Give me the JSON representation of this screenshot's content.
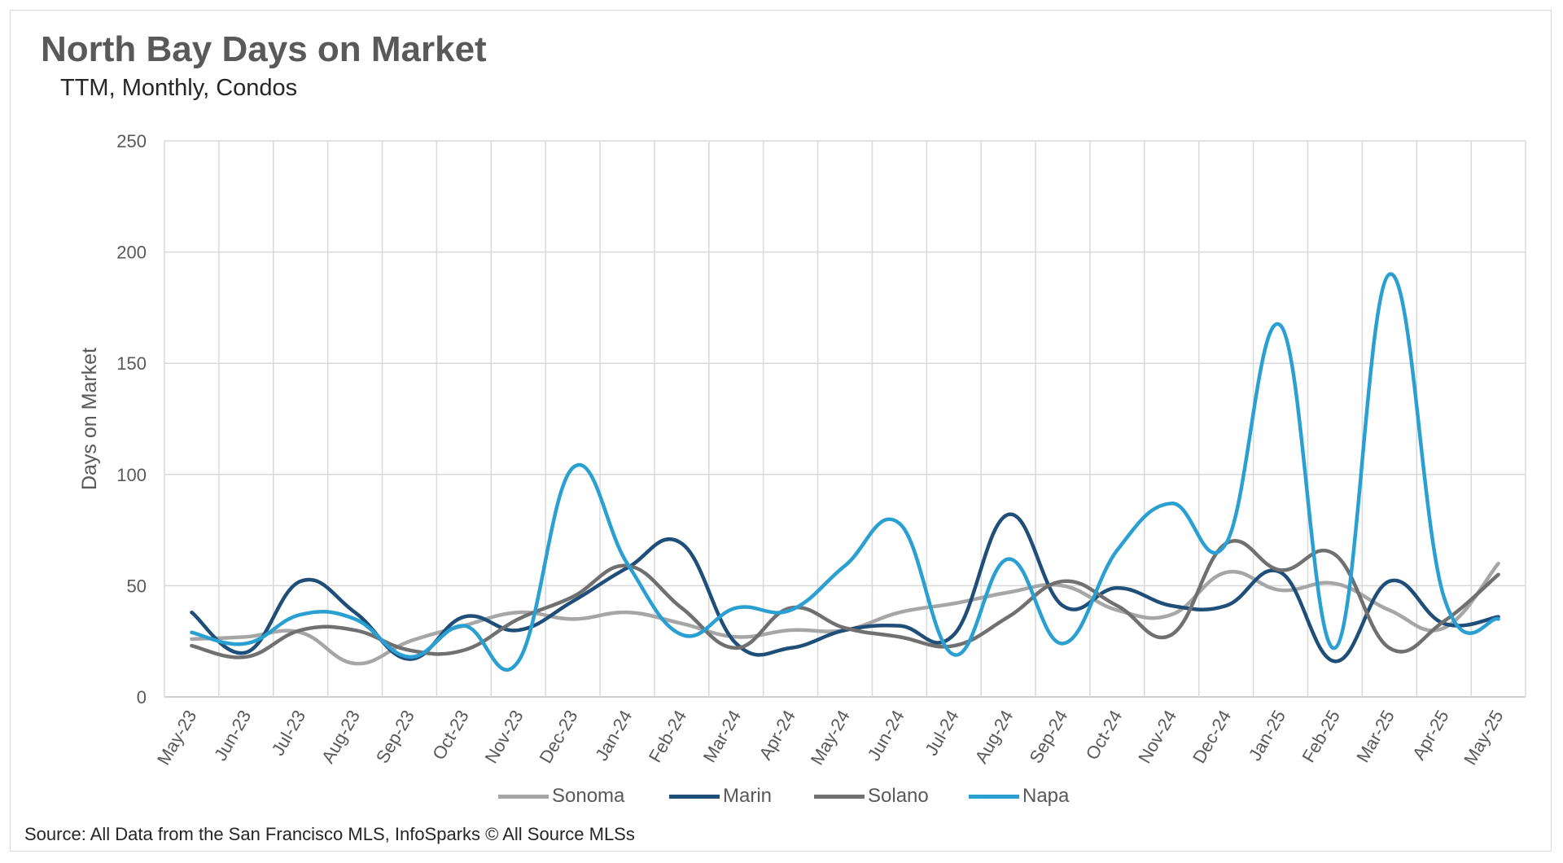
{
  "title": "North Bay Days on Market",
  "subtitle": "TTM, Monthly, Condos",
  "source": "Source: All Data from the San Francisco MLS, InfoSparks © All Source MLSs",
  "chart_data": {
    "type": "line",
    "smooth": true,
    "ylabel": "Days on Market",
    "xlabel": "",
    "ylim": [
      0,
      250
    ],
    "yticks": [
      0,
      50,
      100,
      150,
      200,
      250
    ],
    "grid": true,
    "legend_position": "bottom",
    "categories": [
      "May-23",
      "Jun-23",
      "Jul-23",
      "Aug-23",
      "Sep-23",
      "Oct-23",
      "Nov-23",
      "Dec-23",
      "Jan-24",
      "Feb-24",
      "Mar-24",
      "Apr-24",
      "May-24",
      "Jun-24",
      "Jul-24",
      "Aug-24",
      "Sep-24",
      "Oct-24",
      "Nov-24",
      "Dec-24",
      "Jan-25",
      "Feb-25",
      "Mar-25",
      "Apr-25",
      "May-25"
    ],
    "series": [
      {
        "name": "Sonoma",
        "color": "#a6a6a6",
        "values": [
          26,
          27,
          29,
          15,
          25,
          32,
          38,
          35,
          38,
          33,
          27,
          30,
          30,
          38,
          42,
          47,
          50,
          39,
          37,
          56,
          48,
          51,
          39,
          31,
          60
        ]
      },
      {
        "name": "Marin",
        "color": "#1f4e79",
        "values": [
          38,
          20,
          52,
          38,
          17,
          36,
          30,
          43,
          58,
          69,
          24,
          22,
          30,
          32,
          28,
          82,
          41,
          49,
          41,
          41,
          56,
          16,
          52,
          33,
          36
        ]
      },
      {
        "name": "Solano",
        "color": "#707070",
        "values": [
          23,
          18,
          30,
          30,
          21,
          21,
          35,
          45,
          59,
          40,
          22,
          40,
          31,
          27,
          23,
          36,
          52,
          41,
          28,
          69,
          57,
          64,
          22,
          34,
          55
        ]
      },
      {
        "name": "Napa",
        "color": "#2aa0d2",
        "values": [
          29,
          24,
          37,
          35,
          18,
          32,
          16,
          103,
          60,
          28,
          40,
          39,
          59,
          78,
          19,
          62,
          24,
          66,
          87,
          69,
          167,
          22,
          190,
          45,
          35
        ]
      }
    ]
  }
}
